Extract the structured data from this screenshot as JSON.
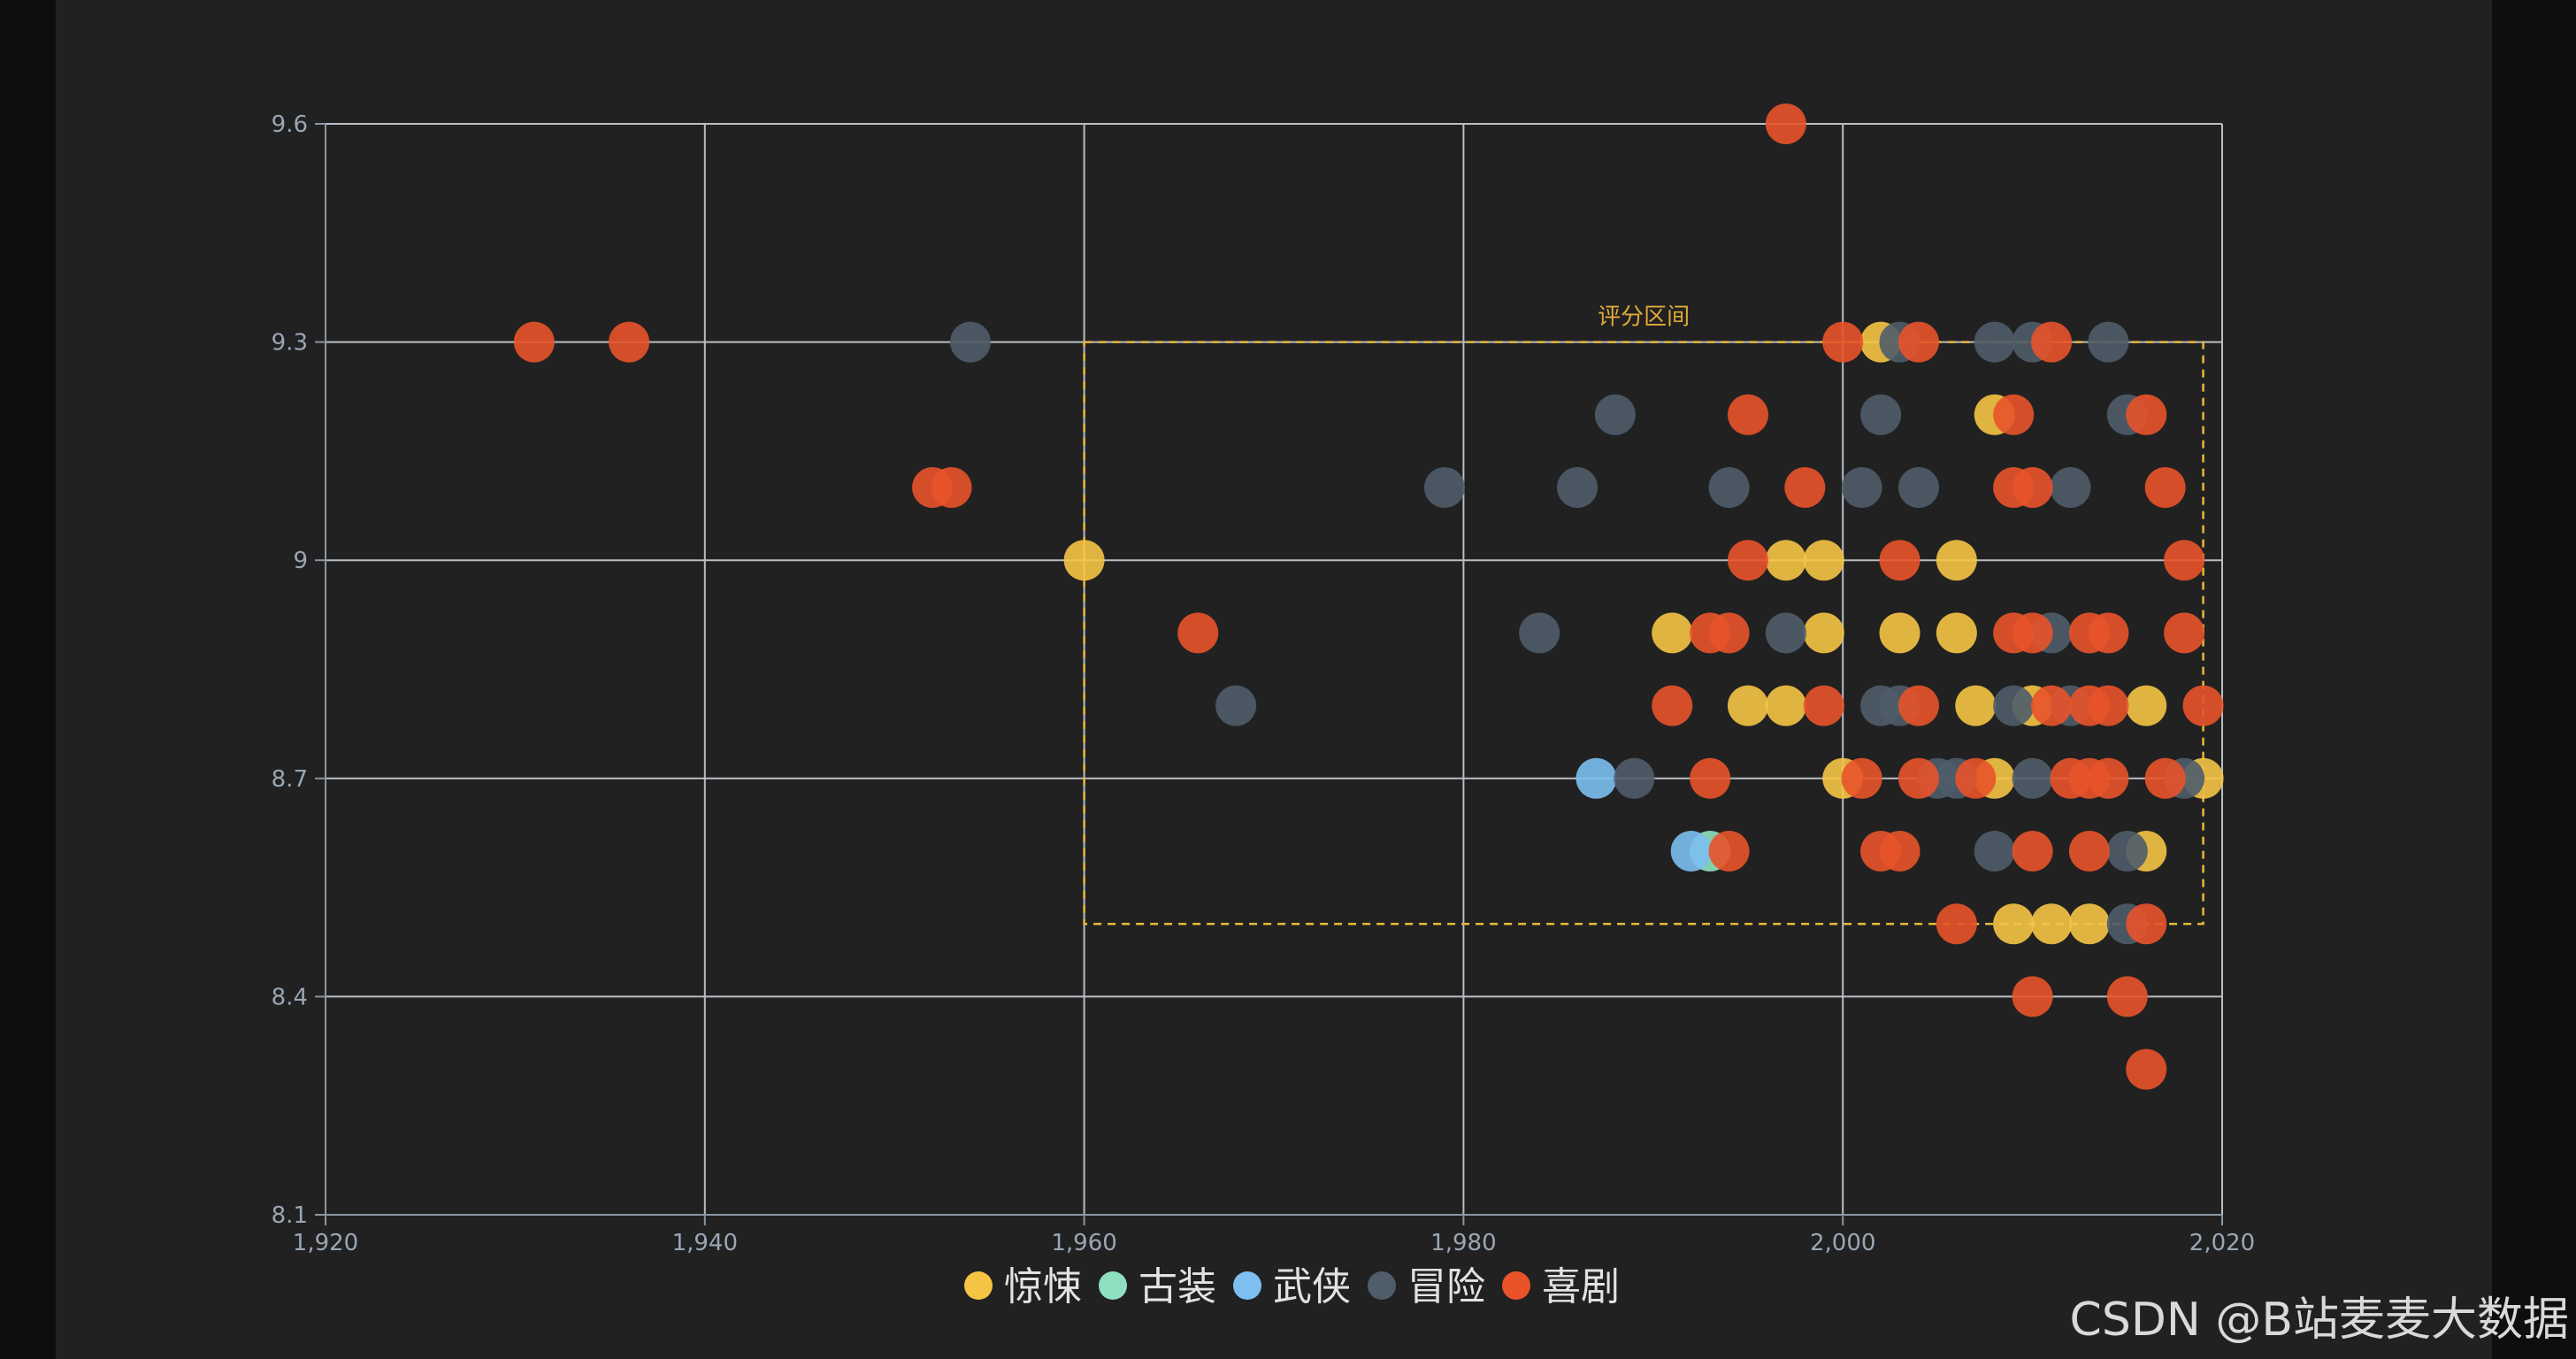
{
  "watermark": "CSDN @B站麦麦大数据",
  "chart_data": {
    "type": "scatter",
    "title": "",
    "xlabel": "",
    "ylabel": "",
    "xlim": [
      1920,
      2020
    ],
    "ylim": [
      8.1,
      9.6
    ],
    "x_ticks": [
      1920,
      1940,
      1960,
      1980,
      2000,
      2020
    ],
    "x_tick_labels": [
      "1,920",
      "1,940",
      "1,960",
      "1,980",
      "2,000",
      "2,020"
    ],
    "y_ticks": [
      8.1,
      8.4,
      8.7,
      9,
      9.3,
      9.6
    ],
    "y_tick_labels": [
      "8.1",
      "8.4",
      "8.7",
      "9",
      "9.3",
      "9.6"
    ],
    "grid": true,
    "legend_position": "bottom",
    "mark_area": {
      "label": "评分区间",
      "x": [
        1960,
        2019
      ],
      "y": [
        8.5,
        9.3
      ],
      "color": "#e8b93c"
    },
    "series": [
      {
        "name": "惊悚",
        "color": "#f5c445",
        "points": [
          [
            1960,
            9.0
          ],
          [
            1997,
            9.0
          ],
          [
            1999,
            9.0
          ],
          [
            2006,
            9.0
          ],
          [
            1991,
            8.9
          ],
          [
            1999,
            8.9
          ],
          [
            2003,
            8.9
          ],
          [
            2006,
            8.9
          ],
          [
            1995,
            8.8
          ],
          [
            1997,
            8.8
          ],
          [
            2007,
            8.8
          ],
          [
            2010,
            8.8
          ],
          [
            2016,
            8.8
          ],
          [
            2000,
            8.7
          ],
          [
            2008,
            8.7
          ],
          [
            2019,
            8.7
          ],
          [
            2016,
            8.6
          ],
          [
            2009,
            8.5
          ],
          [
            2011,
            8.5
          ],
          [
            2013,
            8.5
          ],
          [
            2002,
            9.3
          ],
          [
            2008,
            9.2
          ]
        ]
      },
      {
        "name": "古装",
        "color": "#8fe0c0",
        "points": [
          [
            1993,
            8.6
          ]
        ]
      },
      {
        "name": "武侠",
        "color": "#7cbff0",
        "points": [
          [
            1987,
            8.7
          ],
          [
            1992,
            8.6
          ]
        ]
      },
      {
        "name": "冒险",
        "color": "#4f5d6a",
        "points": [
          [
            1954,
            9.3
          ],
          [
            2003,
            9.3
          ],
          [
            2008,
            9.3
          ],
          [
            2010,
            9.3
          ],
          [
            2014,
            9.3
          ],
          [
            1988,
            9.2
          ],
          [
            2002,
            9.2
          ],
          [
            2015,
            9.2
          ],
          [
            1979,
            9.1
          ],
          [
            1986,
            9.1
          ],
          [
            1994,
            9.1
          ],
          [
            2001,
            9.1
          ],
          [
            2004,
            9.1
          ],
          [
            2012,
            9.1
          ],
          [
            1984,
            8.9
          ],
          [
            1997,
            8.9
          ],
          [
            2011,
            8.9
          ],
          [
            1968,
            8.8
          ],
          [
            2002,
            8.8
          ],
          [
            2003,
            8.8
          ],
          [
            2009,
            8.8
          ],
          [
            2012,
            8.8
          ],
          [
            1989,
            8.7
          ],
          [
            2005,
            8.7
          ],
          [
            2006,
            8.7
          ],
          [
            2010,
            8.7
          ],
          [
            2018,
            8.7
          ],
          [
            2008,
            8.6
          ],
          [
            2015,
            8.6
          ],
          [
            2015,
            8.5
          ]
        ]
      },
      {
        "name": "喜剧",
        "color": "#e8532a",
        "points": [
          [
            1997,
            9.6
          ],
          [
            1931,
            9.3
          ],
          [
            1936,
            9.3
          ],
          [
            2000,
            9.3
          ],
          [
            2004,
            9.3
          ],
          [
            2011,
            9.3
          ],
          [
            1995,
            9.2
          ],
          [
            2009,
            9.2
          ],
          [
            2016,
            9.2
          ],
          [
            1952,
            9.1
          ],
          [
            1953,
            9.1
          ],
          [
            1998,
            9.1
          ],
          [
            2009,
            9.1
          ],
          [
            2010,
            9.1
          ],
          [
            2017,
            9.1
          ],
          [
            1995,
            9.0
          ],
          [
            2003,
            9.0
          ],
          [
            2018,
            9.0
          ],
          [
            1966,
            8.9
          ],
          [
            1993,
            8.9
          ],
          [
            1994,
            8.9
          ],
          [
            2009,
            8.9
          ],
          [
            2010,
            8.9
          ],
          [
            2013,
            8.9
          ],
          [
            2014,
            8.9
          ],
          [
            2018,
            8.9
          ],
          [
            1991,
            8.8
          ],
          [
            1999,
            8.8
          ],
          [
            2004,
            8.8
          ],
          [
            2011,
            8.8
          ],
          [
            2013,
            8.8
          ],
          [
            2014,
            8.8
          ],
          [
            2019,
            8.8
          ],
          [
            1993,
            8.7
          ],
          [
            2001,
            8.7
          ],
          [
            2004,
            8.7
          ],
          [
            2007,
            8.7
          ],
          [
            2012,
            8.7
          ],
          [
            2013,
            8.7
          ],
          [
            2014,
            8.7
          ],
          [
            2017,
            8.7
          ],
          [
            1994,
            8.6
          ],
          [
            2002,
            8.6
          ],
          [
            2003,
            8.6
          ],
          [
            2010,
            8.6
          ],
          [
            2013,
            8.6
          ],
          [
            2006,
            8.5
          ],
          [
            2016,
            8.5
          ],
          [
            2010,
            8.4
          ],
          [
            2015,
            8.4
          ],
          [
            2016,
            8.3
          ]
        ]
      }
    ]
  }
}
